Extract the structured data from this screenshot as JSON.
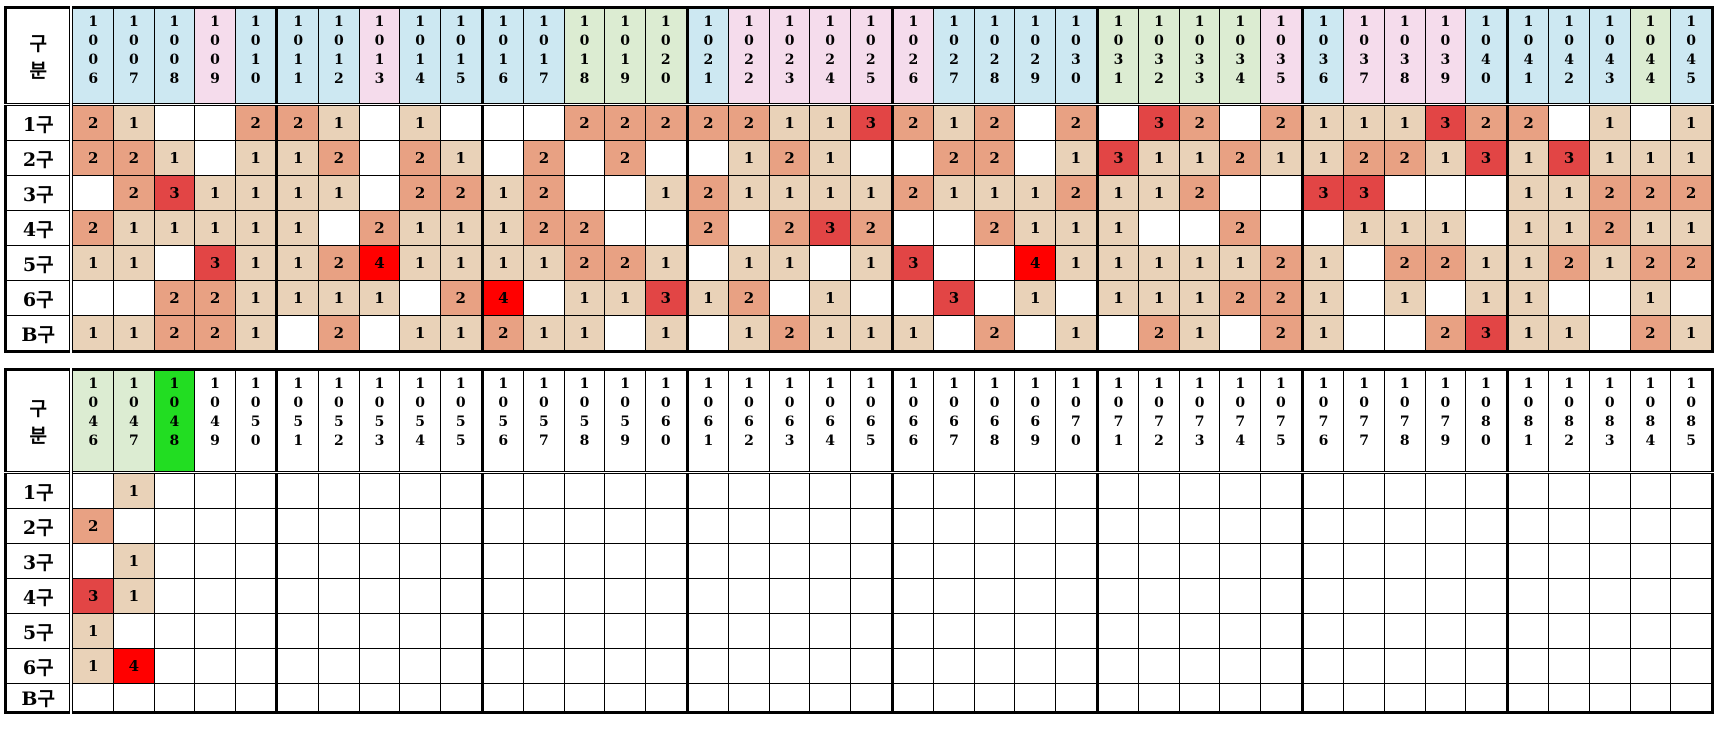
{
  "section_label": "구\n분",
  "row_labels": [
    "1구",
    "2구",
    "3구",
    "4구",
    "5구",
    "6구",
    "B구"
  ],
  "colors": {
    "blue": "#cde8f2",
    "pink": "#f5dcec",
    "green": "#dcecd2",
    "bright_green": "#22dd22",
    "v1": "#e9d2b8",
    "v2": "#e8a183",
    "v3": "#e24545",
    "v4": "#ff0000",
    "none": "#ffffff"
  },
  "table1": {
    "headers": [
      "1006",
      "1007",
      "1008",
      "1009",
      "1010",
      "1011",
      "1012",
      "1013",
      "1014",
      "1015",
      "1016",
      "1017",
      "1018",
      "1019",
      "1020",
      "1021",
      "1022",
      "1023",
      "1024",
      "1025",
      "1026",
      "1027",
      "1028",
      "1029",
      "1030",
      "1031",
      "1032",
      "1033",
      "1034",
      "1035",
      "1036",
      "1037",
      "1038",
      "1039",
      "1040",
      "1041",
      "1042",
      "1043",
      "1044",
      "1045"
    ],
    "header_colors": [
      "blue",
      "blue",
      "blue",
      "pink",
      "blue",
      "blue",
      "blue",
      "pink",
      "blue",
      "blue",
      "blue",
      "blue",
      "green",
      "green",
      "green",
      "blue",
      "pink",
      "pink",
      "pink",
      "pink",
      "pink",
      "blue",
      "blue",
      "blue",
      "blue",
      "green",
      "green",
      "green",
      "green",
      "pink",
      "blue",
      "pink",
      "pink",
      "pink",
      "blue",
      "blue",
      "blue",
      "blue",
      "green",
      "blue"
    ],
    "rows": [
      [
        2,
        1,
        0,
        0,
        2,
        2,
        1,
        0,
        1,
        0,
        0,
        0,
        2,
        2,
        2,
        2,
        2,
        1,
        1,
        3,
        2,
        1,
        2,
        0,
        2,
        0,
        3,
        2,
        0,
        2,
        1,
        1,
        1,
        3,
        2,
        2,
        0,
        1,
        0,
        1
      ],
      [
        2,
        2,
        1,
        0,
        1,
        1,
        2,
        0,
        2,
        1,
        0,
        2,
        0,
        2,
        0,
        0,
        1,
        2,
        1,
        0,
        0,
        2,
        2,
        0,
        1,
        3,
        1,
        1,
        2,
        1,
        1,
        2,
        2,
        1,
        3,
        1,
        3,
        1,
        1,
        1
      ],
      [
        0,
        2,
        3,
        1,
        1,
        1,
        1,
        0,
        2,
        2,
        1,
        2,
        0,
        0,
        1,
        2,
        1,
        1,
        1,
        1,
        2,
        1,
        1,
        1,
        2,
        1,
        1,
        2,
        0,
        0,
        3,
        3,
        0,
        0,
        0,
        1,
        1,
        2,
        2,
        2
      ],
      [
        2,
        1,
        1,
        1,
        1,
        1,
        0,
        2,
        1,
        1,
        1,
        2,
        2,
        0,
        0,
        2,
        0,
        2,
        3,
        2,
        0,
        0,
        2,
        1,
        1,
        1,
        0,
        0,
        2,
        0,
        0,
        1,
        1,
        1,
        0,
        1,
        1,
        2,
        1,
        1
      ],
      [
        1,
        1,
        0,
        3,
        1,
        1,
        2,
        4,
        1,
        1,
        1,
        1,
        2,
        2,
        1,
        0,
        1,
        1,
        0,
        1,
        3,
        0,
        0,
        4,
        1,
        1,
        1,
        1,
        1,
        2,
        1,
        0,
        2,
        2,
        1,
        1,
        2,
        1,
        2,
        2
      ],
      [
        0,
        0,
        2,
        2,
        1,
        1,
        1,
        1,
        0,
        2,
        4,
        0,
        1,
        1,
        3,
        1,
        2,
        0,
        1,
        0,
        0,
        3,
        0,
        1,
        0,
        1,
        1,
        1,
        2,
        2,
        1,
        0,
        1,
        0,
        1,
        1,
        0,
        0,
        1,
        0
      ],
      [
        1,
        1,
        2,
        2,
        1,
        0,
        2,
        0,
        1,
        1,
        2,
        1,
        1,
        0,
        1,
        0,
        1,
        2,
        1,
        1,
        1,
        0,
        2,
        0,
        1,
        0,
        2,
        1,
        0,
        2,
        1,
        0,
        0,
        2,
        3,
        1,
        1,
        0,
        2,
        1
      ]
    ]
  },
  "table2": {
    "headers": [
      "1046",
      "1047",
      "1048",
      "1049",
      "1050",
      "1051",
      "1052",
      "1053",
      "1054",
      "1055",
      "1056",
      "1057",
      "1058",
      "1059",
      "1060",
      "1061",
      "1062",
      "1063",
      "1064",
      "1065",
      "1066",
      "1067",
      "1068",
      "1069",
      "1070",
      "1071",
      "1072",
      "1073",
      "1074",
      "1075",
      "1076",
      "1077",
      "1078",
      "1079",
      "1080",
      "1081",
      "1082",
      "1083",
      "1084",
      "1085"
    ],
    "header_colors": [
      "green",
      "green",
      "bright_green",
      "none",
      "none",
      "none",
      "none",
      "none",
      "none",
      "none",
      "none",
      "none",
      "none",
      "none",
      "none",
      "none",
      "none",
      "none",
      "none",
      "none",
      "none",
      "none",
      "none",
      "none",
      "none",
      "none",
      "none",
      "none",
      "none",
      "none",
      "none",
      "none",
      "none",
      "none",
      "none",
      "none",
      "none",
      "none",
      "none",
      "none"
    ],
    "rows": [
      [
        0,
        1
      ],
      [
        2,
        0
      ],
      [
        0,
        1
      ],
      [
        3,
        1
      ],
      [
        1,
        0
      ],
      [
        1,
        4
      ],
      [
        0,
        0
      ]
    ]
  }
}
